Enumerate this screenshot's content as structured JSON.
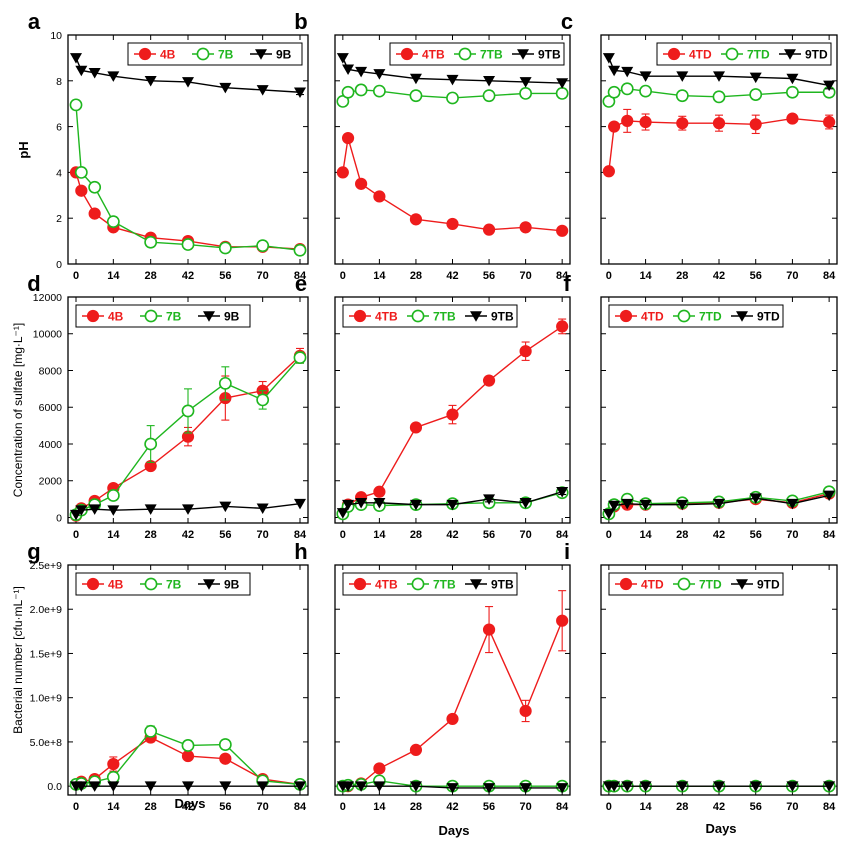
{
  "colors": {
    "red": "#ee1c1c",
    "green": "#1fb61f",
    "black": "#000000",
    "errRed": "#ee1c1c",
    "errGreen": "#1fb61f"
  },
  "axis_common": {
    "x_ticks": [
      0,
      14,
      28,
      42,
      56,
      70,
      84
    ],
    "xlabel": "Days",
    "xlim": [
      -3,
      87
    ]
  },
  "rows": {
    "ph": {
      "ylabel": "pH",
      "ylim": [
        0,
        10
      ],
      "yticks": [
        0,
        2,
        4,
        6,
        8,
        10
      ],
      "ytick_labels": [
        "0",
        "2",
        "4",
        "6",
        "8",
        "10"
      ]
    },
    "sulfate": {
      "ylabel": "Concentration of sulfate [mg·L⁻¹]",
      "ylim": [
        -300,
        12000
      ],
      "yticks": [
        0,
        2000,
        4000,
        6000,
        8000,
        10000,
        12000
      ],
      "ytick_labels": [
        "0",
        "2000",
        "4000",
        "6000",
        "8000",
        "10000",
        "12000"
      ]
    },
    "bact": {
      "ylabel": "Bacterial number [cfu·mL⁻¹]",
      "ylim": [
        -0.1,
        2.5
      ],
      "yticks": [
        0,
        0.5,
        1.0,
        1.5,
        2.0,
        2.5
      ],
      "ytick_labels": [
        "0.0",
        "5.0e+8",
        "1.0e+9",
        "1.5e+9",
        "2.0e+9",
        "2.5e+9"
      ]
    }
  },
  "chart_data": [
    {
      "panel": "a",
      "type": "line",
      "row": "ph",
      "legend": "top-right",
      "series": [
        {
          "name": "4B",
          "color": "red",
          "marker": "circle-filled",
          "x": [
            0,
            2,
            7,
            14,
            28,
            42,
            56,
            70,
            84
          ],
          "y": [
            4.0,
            3.2,
            2.2,
            1.6,
            1.15,
            1.0,
            0.75,
            0.75,
            0.65
          ],
          "err": [
            0,
            0,
            0,
            0.1,
            0.1,
            0.1,
            0.1,
            0.1,
            0.1
          ]
        },
        {
          "name": "7B",
          "color": "green",
          "marker": "circle-open",
          "x": [
            0,
            2,
            7,
            14,
            28,
            42,
            56,
            70,
            84
          ],
          "y": [
            6.95,
            4.0,
            3.35,
            1.85,
            0.95,
            0.85,
            0.7,
            0.8,
            0.6
          ],
          "err": [
            0,
            0,
            0,
            0.2,
            0.1,
            0.1,
            0.1,
            0.1,
            0.1
          ]
        },
        {
          "name": "9B",
          "color": "black",
          "marker": "triangle-down",
          "x": [
            0,
            2,
            7,
            14,
            28,
            42,
            56,
            70,
            84
          ],
          "y": [
            9.0,
            8.45,
            8.35,
            8.2,
            8.0,
            7.95,
            7.7,
            7.6,
            7.5
          ],
          "err": [
            0,
            0,
            0,
            0,
            0,
            0,
            0,
            0,
            0.1
          ]
        }
      ]
    },
    {
      "panel": "b",
      "type": "line",
      "row": "ph",
      "legend": "top-right",
      "series": [
        {
          "name": "4TB",
          "color": "red",
          "marker": "circle-filled",
          "x": [
            0,
            2,
            7,
            14,
            28,
            42,
            56,
            70,
            84
          ],
          "y": [
            4.0,
            5.5,
            3.5,
            2.95,
            1.95,
            1.75,
            1.5,
            1.6,
            1.45
          ],
          "err": [
            0,
            0,
            0,
            0,
            0,
            0,
            0,
            0,
            0
          ]
        },
        {
          "name": "7TB",
          "color": "green",
          "marker": "circle-open",
          "x": [
            0,
            2,
            7,
            14,
            28,
            42,
            56,
            70,
            84
          ],
          "y": [
            7.1,
            7.5,
            7.6,
            7.55,
            7.35,
            7.25,
            7.35,
            7.45,
            7.45
          ],
          "err": [
            0,
            0,
            0,
            0,
            0,
            0,
            0,
            0,
            0.2
          ]
        },
        {
          "name": "9TB",
          "color": "black",
          "marker": "triangle-down",
          "x": [
            0,
            2,
            7,
            14,
            28,
            42,
            56,
            70,
            84
          ],
          "y": [
            9.0,
            8.5,
            8.4,
            8.3,
            8.1,
            8.05,
            8.0,
            7.95,
            7.9
          ],
          "err": [
            0,
            0,
            0,
            0,
            0,
            0,
            0,
            0,
            0
          ]
        }
      ]
    },
    {
      "panel": "c",
      "type": "line",
      "row": "ph",
      "legend": "top-right",
      "series": [
        {
          "name": "4TD",
          "color": "red",
          "marker": "circle-filled",
          "x": [
            0,
            2,
            7,
            14,
            28,
            42,
            56,
            70,
            84
          ],
          "y": [
            4.05,
            6.0,
            6.25,
            6.2,
            6.15,
            6.15,
            6.1,
            6.35,
            6.2
          ],
          "err": [
            0,
            0,
            0.5,
            0.35,
            0.3,
            0.35,
            0.4,
            0.15,
            0.3
          ]
        },
        {
          "name": "7TD",
          "color": "green",
          "marker": "circle-open",
          "x": [
            0,
            2,
            7,
            14,
            28,
            42,
            56,
            70,
            84
          ],
          "y": [
            7.1,
            7.5,
            7.65,
            7.55,
            7.35,
            7.3,
            7.4,
            7.5,
            7.5
          ],
          "err": [
            0,
            0,
            0,
            0,
            0,
            0,
            0,
            0,
            0
          ]
        },
        {
          "name": "9TD",
          "color": "black",
          "marker": "triangle-down",
          "x": [
            0,
            2,
            7,
            14,
            28,
            42,
            56,
            70,
            84
          ],
          "y": [
            9.0,
            8.45,
            8.4,
            8.2,
            8.2,
            8.2,
            8.15,
            8.1,
            7.8
          ],
          "err": [
            0,
            0,
            0,
            0,
            0,
            0,
            0,
            0,
            0.15
          ]
        }
      ]
    },
    {
      "panel": "d",
      "type": "line",
      "row": "sulfate",
      "legend": "top-left",
      "series": [
        {
          "name": "4B",
          "color": "red",
          "marker": "circle-filled",
          "x": [
            0,
            2,
            7,
            14,
            28,
            42,
            56,
            70,
            84
          ],
          "y": [
            100,
            500,
            900,
            1600,
            2800,
            4400,
            6500,
            6900,
            8800
          ],
          "err": [
            0,
            0,
            0,
            150,
            200,
            500,
            1200,
            500,
            400
          ]
        },
        {
          "name": "7B",
          "color": "green",
          "marker": "circle-open",
          "x": [
            0,
            2,
            7,
            14,
            28,
            42,
            56,
            70,
            84
          ],
          "y": [
            150,
            400,
            700,
            1200,
            4000,
            5800,
            7300,
            6400,
            8700
          ],
          "err": [
            0,
            0,
            0,
            200,
            1000,
            1200,
            900,
            500,
            300
          ]
        },
        {
          "name": "9B",
          "color": "black",
          "marker": "triangle-down",
          "x": [
            0,
            2,
            7,
            14,
            28,
            42,
            56,
            70,
            84
          ],
          "y": [
            150,
            400,
            450,
            400,
            450,
            450,
            600,
            500,
            750
          ],
          "err": [
            0,
            0,
            0,
            0,
            0,
            0,
            0,
            0,
            0
          ]
        }
      ]
    },
    {
      "panel": "e",
      "type": "line",
      "row": "sulfate",
      "legend": "top-left",
      "series": [
        {
          "name": "4TB",
          "color": "red",
          "marker": "circle-filled",
          "x": [
            0,
            2,
            7,
            14,
            28,
            42,
            56,
            70,
            84
          ],
          "y": [
            200,
            700,
            1100,
            1400,
            4900,
            5600,
            7450,
            9050,
            10400
          ],
          "err": [
            0,
            0,
            0,
            0,
            0,
            500,
            0,
            500,
            400
          ]
        },
        {
          "name": "7TB",
          "color": "green",
          "marker": "circle-open",
          "x": [
            0,
            2,
            7,
            14,
            28,
            42,
            56,
            70,
            84
          ],
          "y": [
            200,
            600,
            700,
            650,
            700,
            750,
            800,
            800,
            1350
          ],
          "err": [
            0,
            0,
            0,
            0,
            0,
            0,
            0,
            0,
            0
          ]
        },
        {
          "name": "9TB",
          "color": "black",
          "marker": "triangle-down",
          "x": [
            0,
            2,
            7,
            14,
            28,
            42,
            56,
            70,
            84
          ],
          "y": [
            250,
            700,
            800,
            800,
            700,
            700,
            1000,
            800,
            1400
          ],
          "err": [
            0,
            0,
            0,
            0,
            0,
            0,
            150,
            0,
            150
          ]
        }
      ]
    },
    {
      "panel": "f",
      "type": "line",
      "row": "sulfate",
      "legend": "top-left",
      "series": [
        {
          "name": "4TD",
          "color": "red",
          "marker": "circle-filled",
          "x": [
            0,
            2,
            7,
            14,
            28,
            42,
            56,
            70,
            84
          ],
          "y": [
            200,
            600,
            700,
            700,
            750,
            800,
            1000,
            800,
            1300
          ],
          "err": [
            0,
            0,
            0,
            0,
            0,
            0,
            100,
            0,
            100
          ]
        },
        {
          "name": "7TD",
          "color": "green",
          "marker": "circle-open",
          "x": [
            0,
            2,
            7,
            14,
            28,
            42,
            56,
            70,
            84
          ],
          "y": [
            200,
            700,
            1000,
            750,
            800,
            850,
            1100,
            900,
            1400
          ],
          "err": [
            0,
            0,
            200,
            0,
            0,
            0,
            100,
            0,
            100
          ]
        },
        {
          "name": "9TD",
          "color": "black",
          "marker": "triangle-down",
          "x": [
            0,
            2,
            7,
            14,
            28,
            42,
            56,
            70,
            84
          ],
          "y": [
            200,
            650,
            750,
            700,
            700,
            750,
            1050,
            750,
            1200
          ],
          "err": [
            0,
            0,
            0,
            0,
            0,
            0,
            0,
            0,
            0
          ]
        }
      ]
    },
    {
      "panel": "g",
      "type": "line",
      "row": "bact",
      "legend": "top-left",
      "series": [
        {
          "name": "4B",
          "color": "red",
          "marker": "circle-filled",
          "x": [
            0,
            2,
            7,
            14,
            28,
            42,
            56,
            70,
            84
          ],
          "y": [
            0.02,
            0.05,
            0.08,
            0.25,
            0.55,
            0.34,
            0.31,
            0.08,
            0.02
          ],
          "err": [
            0,
            0,
            0,
            0.08,
            0.05,
            0.02,
            0.02,
            0.02,
            0
          ]
        },
        {
          "name": "7B",
          "color": "green",
          "marker": "circle-open",
          "x": [
            0,
            2,
            7,
            14,
            28,
            42,
            56,
            70,
            84
          ],
          "y": [
            0.02,
            0.03,
            0.05,
            0.1,
            0.62,
            0.46,
            0.47,
            0.06,
            0.02
          ],
          "err": [
            0,
            0,
            0,
            0,
            0.06,
            0.02,
            0.02,
            0,
            0
          ]
        },
        {
          "name": "9B",
          "color": "black",
          "marker": "triangle-down",
          "x": [
            0,
            2,
            7,
            14,
            28,
            42,
            56,
            70,
            84
          ],
          "y": [
            0.0,
            0.0,
            0.0,
            0.0,
            0.0,
            0.0,
            0.0,
            0.0,
            0.0
          ],
          "err": [
            0,
            0,
            0,
            0,
            0,
            0,
            0,
            0,
            0
          ]
        }
      ]
    },
    {
      "panel": "h",
      "type": "line",
      "row": "bact",
      "legend": "top-left",
      "series": [
        {
          "name": "4TB",
          "color": "red",
          "marker": "circle-filled",
          "x": [
            0,
            2,
            7,
            14,
            28,
            42,
            56,
            70,
            84
          ],
          "y": [
            0.0,
            0.0,
            0.03,
            0.2,
            0.41,
            0.76,
            1.77,
            0.85,
            1.87
          ],
          "err": [
            0,
            0,
            0,
            0.03,
            0.02,
            0.03,
            0.26,
            0.12,
            0.34
          ]
        },
        {
          "name": "7TB",
          "color": "green",
          "marker": "circle-open",
          "x": [
            0,
            2,
            7,
            14,
            28,
            42,
            56,
            70,
            84
          ],
          "y": [
            0.0,
            0.01,
            0.02,
            0.06,
            0.0,
            0.0,
            0.0,
            0.0,
            0.0
          ],
          "err": [
            0,
            0,
            0,
            0,
            0,
            0,
            0,
            0,
            0
          ]
        },
        {
          "name": "9TB",
          "color": "black",
          "marker": "triangle-down",
          "x": [
            0,
            2,
            7,
            14,
            28,
            42,
            56,
            70,
            84
          ],
          "y": [
            0.0,
            0.0,
            0.0,
            0.0,
            0.0,
            -0.02,
            -0.02,
            -0.02,
            -0.02
          ],
          "err": [
            0,
            0,
            0,
            0,
            0,
            0,
            0,
            0,
            0
          ]
        }
      ]
    },
    {
      "panel": "i",
      "type": "line",
      "row": "bact",
      "legend": "top-left",
      "series": [
        {
          "name": "4TD",
          "color": "red",
          "marker": "circle-filled",
          "x": [
            0,
            2,
            7,
            14,
            28,
            42,
            56,
            70,
            84
          ],
          "y": [
            0.0,
            0.0,
            0.0,
            0.0,
            0.0,
            0.0,
            0.0,
            0.0,
            0.0
          ],
          "err": [
            0,
            0,
            0,
            0,
            0,
            0,
            0,
            0,
            0
          ]
        },
        {
          "name": "7TD",
          "color": "green",
          "marker": "circle-open",
          "x": [
            0,
            2,
            7,
            14,
            28,
            42,
            56,
            70,
            84
          ],
          "y": [
            0.0,
            0.0,
            0.0,
            0.0,
            0.0,
            0.0,
            0.0,
            0.0,
            0.0
          ],
          "err": [
            0,
            0,
            0,
            0,
            0,
            0,
            0,
            0,
            0
          ]
        },
        {
          "name": "9TD",
          "color": "black",
          "marker": "triangle-down",
          "x": [
            0,
            2,
            7,
            14,
            28,
            42,
            56,
            70,
            84
          ],
          "y": [
            0.0,
            0.0,
            0.0,
            0.0,
            0.0,
            0.0,
            0.0,
            0.0,
            0.0
          ],
          "err": [
            0,
            0,
            0,
            0,
            0,
            0,
            0,
            0,
            0
          ]
        }
      ]
    }
  ]
}
